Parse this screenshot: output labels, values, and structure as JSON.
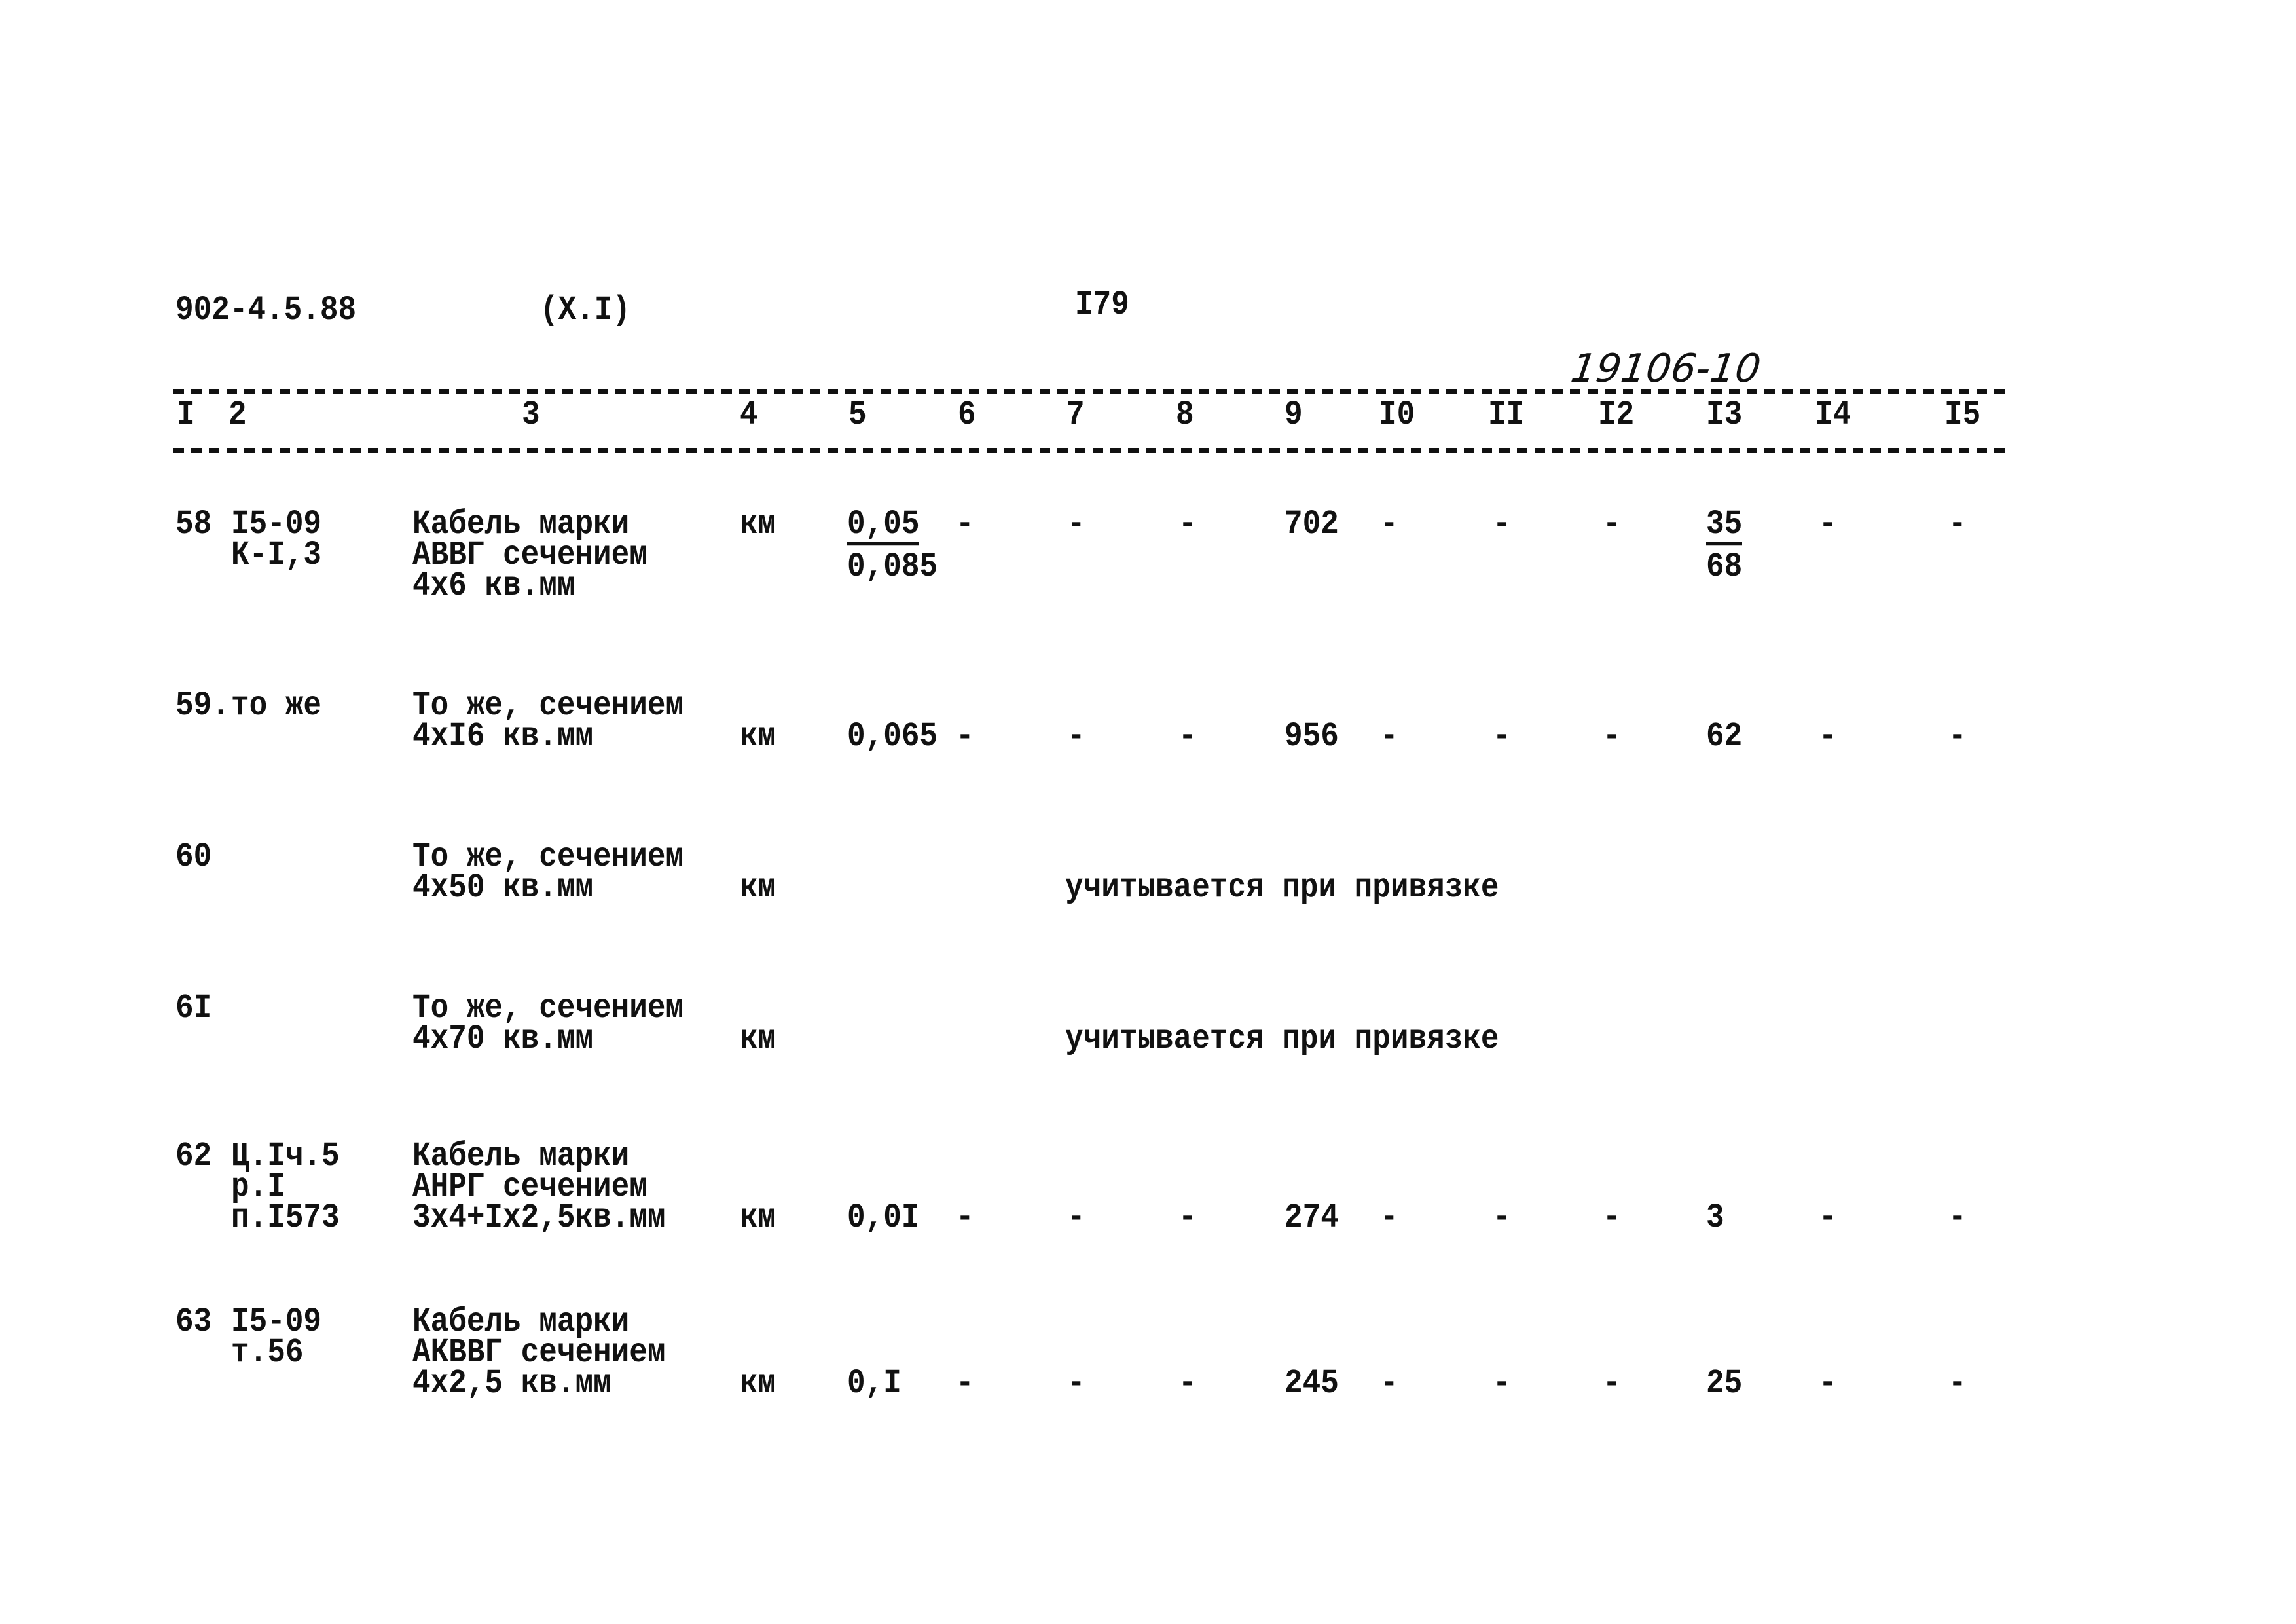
{
  "header": {
    "doc_code": "902-4.5.88",
    "section": "(X.I)",
    "page_number": "I79",
    "handwritten_ref": "19106-10"
  },
  "columns": [
    "I",
    "2",
    "3",
    "4",
    "5",
    "6",
    "7",
    "8",
    "9",
    "I0",
    "II",
    "I2",
    "I3",
    "I4",
    "I5"
  ],
  "rows": [
    {
      "num": "58",
      "ref": [
        "I5-09",
        "К-I,3"
      ],
      "desc": [
        "Кабель марки",
        "АВВГ сечением",
        "4х6 кв.мм"
      ],
      "unit": "км",
      "line": 0,
      "values": [
        {
          "top": "0,05",
          "bottom": "0,085"
        },
        "-",
        "-",
        "-",
        "702",
        "-",
        "-",
        "-",
        {
          "top": "35",
          "bottom": "68"
        },
        "-",
        "-"
      ]
    },
    {
      "num": "59.",
      "ref": [
        "то же"
      ],
      "desc": [
        "То же, сечением",
        "4хI6 кв.мм"
      ],
      "unit": "км",
      "line": 1,
      "values": [
        "0,065",
        "-",
        "-",
        "-",
        "956",
        "-",
        "-",
        "-",
        "62",
        "-",
        "-"
      ]
    },
    {
      "num": "60",
      "ref": [],
      "desc": [
        "То же, сечением",
        "4х50 кв.мм"
      ],
      "unit": "км",
      "line": 1,
      "note": "учитывается при привязке"
    },
    {
      "num": "6I",
      "ref": [],
      "desc": [
        "То же, сечением",
        "4х70 кв.мм"
      ],
      "unit": "км",
      "line": 1,
      "note": "учитывается при привязке"
    },
    {
      "num": "62",
      "ref": [
        "Ц.Iч.5",
        "р.I",
        "п.I573"
      ],
      "desc": [
        "Кабель марки",
        "АНРГ сечением",
        "3х4+Iх2,5кв.мм"
      ],
      "unit": "км",
      "line": 2,
      "values": [
        "0,0I",
        "-",
        "-",
        "-",
        "274",
        "-",
        "-",
        "-",
        "3",
        "-",
        "-"
      ]
    },
    {
      "num": "63",
      "ref": [
        "I5-09",
        "т.56"
      ],
      "desc": [
        "Кабель марки",
        "АКВВГ сечением",
        "4х2,5 кв.мм"
      ],
      "unit": "км",
      "line": 2,
      "values": [
        "0,I",
        "-",
        "-",
        "-",
        "245",
        "-",
        "-",
        "-",
        "25",
        "-",
        "-"
      ]
    }
  ]
}
